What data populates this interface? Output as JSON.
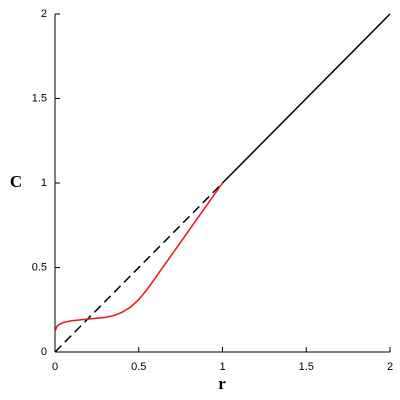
{
  "chart_data": {
    "type": "line",
    "x_label": "r",
    "y_label": "C",
    "xlim": [
      0,
      2
    ],
    "ylim": [
      0,
      2
    ],
    "xticks": [
      0,
      0.5,
      1,
      1.5,
      2
    ],
    "yticks": [
      0,
      0.5,
      1,
      1.5,
      2
    ],
    "grid": false,
    "series": [
      {
        "color": "#000000",
        "dash": true,
        "x": [
          0,
          1
        ],
        "values": [
          0,
          1
        ]
      },
      {
        "color": "#000000",
        "dash": false,
        "x": [
          1,
          2
        ],
        "values": [
          1,
          2
        ]
      },
      {
        "color": "#e8141c",
        "dash": false,
        "x": [
          0,
          0.01,
          0.02,
          0.05,
          0.1,
          0.15,
          0.2,
          0.25,
          0.3,
          0.35,
          0.4,
          0.45,
          0.5,
          0.55,
          0.6,
          0.65,
          0.7,
          0.75,
          0.8,
          0.85,
          0.9,
          0.95,
          1
        ],
        "values": [
          0.12,
          0.15,
          0.16,
          0.175,
          0.185,
          0.19,
          0.195,
          0.2,
          0.205,
          0.215,
          0.235,
          0.265,
          0.31,
          0.37,
          0.44,
          0.51,
          0.58,
          0.65,
          0.72,
          0.79,
          0.86,
          0.93,
          1
        ]
      }
    ]
  }
}
